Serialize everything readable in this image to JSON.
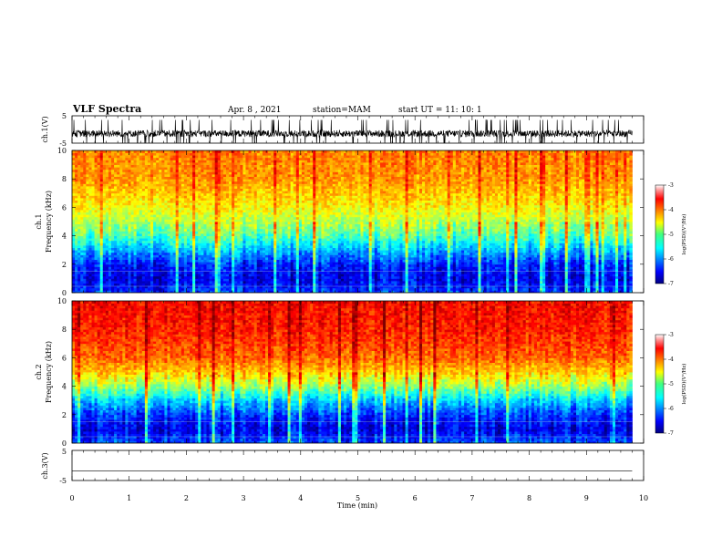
{
  "header": {
    "title": "VLF Spectra",
    "date": "Apr. 8 , 2021",
    "station": "station=MAM",
    "start": "start UT = 11: 10: 1"
  },
  "chart_data": [
    {
      "type": "line",
      "panel": "ch.1 waveform",
      "ylabel": "ch.1(V)",
      "ylim": [
        -5,
        5
      ],
      "yticks": [
        "5",
        "-5"
      ],
      "xlim": [
        0,
        10
      ],
      "description_values": {
        "baseline": -1.5,
        "amplitude": 2.5
      },
      "color": "#000000"
    },
    {
      "type": "heatmap",
      "panel": "ch.1 spectrogram",
      "ylabel": "ch.1",
      "ylabel2": "Frequency (kHz)",
      "ylim": [
        0,
        10
      ],
      "yticks": [
        "0",
        "2",
        "4",
        "6",
        "8",
        "10"
      ],
      "xlim": [
        0,
        10
      ],
      "colorbar": {
        "label": "log(PSD)(V²/Hz)",
        "range": [
          -7,
          -3
        ],
        "ticks": [
          "-3",
          "-4",
          "-5",
          "-6",
          "-7"
        ]
      },
      "log_psd_profile": {
        "freq_khz": [
          0,
          1,
          2,
          3,
          4,
          5,
          6,
          8,
          10
        ],
        "value": [
          -6.3,
          -6.6,
          -6.4,
          -5.8,
          -5.2,
          -4.8,
          -4.5,
          -4.1,
          -4.0
        ]
      }
    },
    {
      "type": "heatmap",
      "panel": "ch.2 spectrogram",
      "ylabel": "ch.2",
      "ylabel2": "Frequency (kHz)",
      "ylim": [
        0,
        10
      ],
      "yticks": [
        "0",
        "2",
        "4",
        "6",
        "8",
        "10"
      ],
      "xlim": [
        0,
        10
      ],
      "colorbar": {
        "label": "log(PSD)(V²/Hz)",
        "range": [
          -7,
          -3
        ],
        "ticks": [
          "-3",
          "-4",
          "-5",
          "-6",
          "-7"
        ]
      },
      "log_psd_profile": {
        "freq_khz": [
          0,
          1,
          2,
          3,
          4,
          5,
          6,
          8,
          10
        ],
        "value": [
          -6.2,
          -6.6,
          -6.3,
          -5.7,
          -4.9,
          -4.3,
          -3.9,
          -3.6,
          -3.5
        ]
      }
    },
    {
      "type": "line",
      "panel": "ch.3 waveform",
      "ylabel": "ch.3(V)",
      "ylim": [
        -5,
        5
      ],
      "yticks": [
        "5",
        "-5"
      ],
      "xlim": [
        0,
        10
      ],
      "xlabel": "Time (min)",
      "xticks": [
        "0",
        "1",
        "2",
        "3",
        "4",
        "5",
        "6",
        "7",
        "8",
        "9",
        "10"
      ],
      "constant_value": -1.8,
      "color": "#000000"
    }
  ]
}
